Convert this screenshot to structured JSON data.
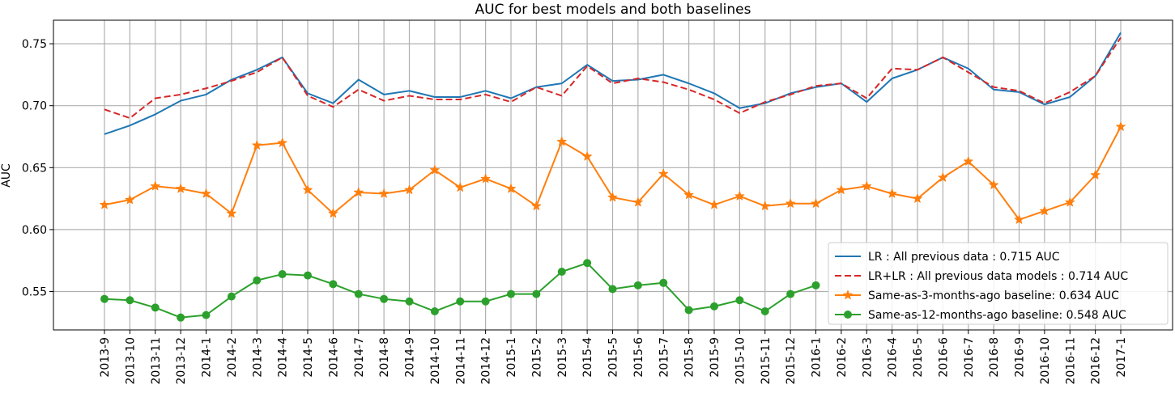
{
  "chart_data": {
    "type": "line",
    "title": "AUC for best models and both baselines",
    "xlabel": "",
    "ylabel": "AUC",
    "ylim": [
      0.519,
      0.769
    ],
    "yticks": [
      0.55,
      0.6,
      0.65,
      0.7,
      0.75
    ],
    "ytick_labels": [
      "0.55",
      "0.60",
      "0.65",
      "0.70",
      "0.75"
    ],
    "grid": true,
    "legend_position": "lower-right",
    "categories": [
      "2013-9",
      "2013-10",
      "2013-11",
      "2013-12",
      "2014-1",
      "2014-2",
      "2014-3",
      "2014-4",
      "2014-5",
      "2014-6",
      "2014-7",
      "2014-8",
      "2014-9",
      "2014-10",
      "2014-11",
      "2014-12",
      "2015-1",
      "2015-2",
      "2015-3",
      "2015-4",
      "2015-5",
      "2015-6",
      "2015-7",
      "2015-8",
      "2015-9",
      "2015-10",
      "2015-11",
      "2015-12",
      "2016-1",
      "2016-2",
      "2016-3",
      "2016-4",
      "2016-5",
      "2016-6",
      "2016-7",
      "2016-8",
      "2016-9",
      "2016-10",
      "2016-11",
      "2016-12",
      "2017-1"
    ],
    "series": [
      {
        "name": "LR : All previous data : 0.715 AUC",
        "color": "#1f77b4",
        "style": "solid",
        "marker": "none",
        "values": [
          0.677,
          0.684,
          0.693,
          0.704,
          0.709,
          0.721,
          0.729,
          0.739,
          0.71,
          0.702,
          0.721,
          0.709,
          0.712,
          0.707,
          0.707,
          0.712,
          0.706,
          0.715,
          0.718,
          0.733,
          0.72,
          0.721,
          0.725,
          0.718,
          0.71,
          0.698,
          0.702,
          0.71,
          0.715,
          0.718,
          0.703,
          0.722,
          0.729,
          0.739,
          0.73,
          0.713,
          0.711,
          0.701,
          0.707,
          0.724,
          0.759
        ]
      },
      {
        "name": "LR+LR : All previous data models : 0.714 AUC",
        "color": "#d62728",
        "style": "dashed",
        "marker": "none",
        "values": [
          0.697,
          0.69,
          0.706,
          0.709,
          0.714,
          0.72,
          0.727,
          0.739,
          0.708,
          0.699,
          0.713,
          0.704,
          0.708,
          0.705,
          0.705,
          0.709,
          0.703,
          0.715,
          0.708,
          0.732,
          0.718,
          0.722,
          0.719,
          0.713,
          0.705,
          0.694,
          0.703,
          0.709,
          0.716,
          0.718,
          0.706,
          0.73,
          0.729,
          0.739,
          0.727,
          0.715,
          0.712,
          0.702,
          0.711,
          0.724,
          0.755
        ]
      },
      {
        "name": "Same-as-3-months-ago baseline: 0.634 AUC",
        "color": "#ff7f0e",
        "style": "solid",
        "marker": "star",
        "values": [
          0.62,
          0.624,
          0.635,
          0.633,
          0.629,
          0.613,
          0.668,
          0.67,
          0.632,
          0.613,
          0.63,
          0.629,
          0.632,
          0.648,
          0.634,
          0.641,
          0.633,
          0.619,
          0.671,
          0.659,
          0.626,
          0.622,
          0.645,
          0.628,
          0.62,
          0.627,
          0.619,
          0.621,
          0.621,
          0.632,
          0.635,
          0.629,
          0.625,
          0.642,
          0.655,
          0.636,
          0.608,
          0.615,
          0.622,
          0.644,
          0.683
        ]
      },
      {
        "name": "Same-as-12-months-ago baseline: 0.548 AUC",
        "color": "#2ca02c",
        "style": "solid",
        "marker": "circle",
        "values": [
          0.544,
          0.543,
          0.537,
          0.529,
          0.531,
          0.546,
          0.559,
          0.564,
          0.563,
          0.556,
          0.548,
          0.544,
          0.542,
          0.534,
          0.542,
          0.542,
          0.548,
          0.548,
          0.566,
          0.573,
          0.552,
          0.555,
          0.557,
          0.535,
          0.538,
          0.543,
          0.534,
          0.548,
          0.555,
          null,
          null,
          null,
          null,
          null,
          null,
          null,
          null,
          null,
          null,
          null,
          null
        ]
      }
    ]
  }
}
